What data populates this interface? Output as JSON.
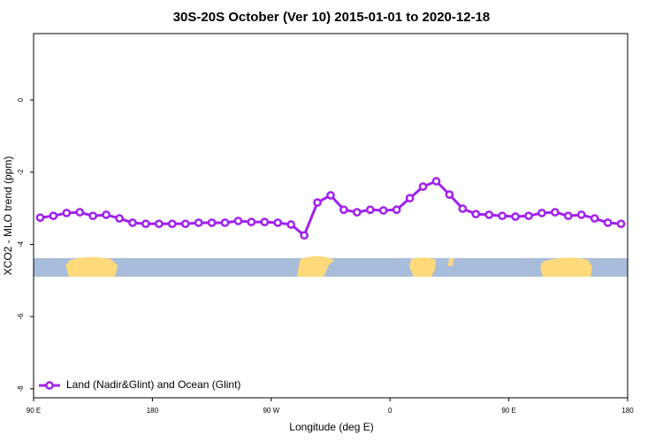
{
  "chart_data": {
    "type": "line",
    "title": "30S-20S October (Ver 10)   2015-01-01 to 2020-12-18",
    "x_label": "Longitude (deg E)",
    "y_label": "XCO2 - MLO trend (ppm)",
    "xlim": [
      90,
      540
    ],
    "ylim": [
      -8.25,
      1.84
    ],
    "xticks": [
      {
        "value": 90,
        "label": "90 E"
      },
      {
        "value": 180,
        "label": "180"
      },
      {
        "value": 270,
        "label": "90 W"
      },
      {
        "value": 360,
        "label": "0"
      },
      {
        "value": 450,
        "label": "90 E"
      },
      {
        "value": 540,
        "label": "180"
      }
    ],
    "yticks": [
      0,
      -2,
      -4,
      -6,
      -8
    ],
    "legend_position": "bottom-left",
    "x": [
      95,
      105,
      115,
      125,
      135,
      145,
      155,
      165,
      175,
      185,
      195,
      205,
      215,
      225,
      235,
      245,
      255,
      265,
      275,
      285,
      295,
      305,
      315,
      325,
      335,
      345,
      355,
      365,
      375,
      385,
      395,
      405,
      415,
      425,
      435,
      445,
      455,
      465,
      475,
      485,
      495,
      505,
      515,
      525,
      535
    ],
    "series": [
      {
        "name": "Land (Nadir&Glint) and Ocean (Glint)",
        "color": "#a020f0",
        "values": [
          -3.26,
          -3.21,
          -3.13,
          -3.11,
          -3.21,
          -3.18,
          -3.28,
          -3.4,
          -3.43,
          -3.43,
          -3.43,
          -3.43,
          -3.4,
          -3.4,
          -3.4,
          -3.35,
          -3.38,
          -3.38,
          -3.4,
          -3.45,
          -3.75,
          -2.84,
          -2.64,
          -3.04,
          -3.11,
          -3.04,
          -3.06,
          -3.04,
          -2.72,
          -2.4,
          -2.25,
          -2.62,
          -3.01,
          -3.16,
          -3.18,
          -3.21,
          -3.23,
          -3.21,
          -3.13,
          -3.11,
          -3.21,
          -3.18,
          -3.28,
          -3.4,
          -3.43
        ]
      }
    ]
  }
}
